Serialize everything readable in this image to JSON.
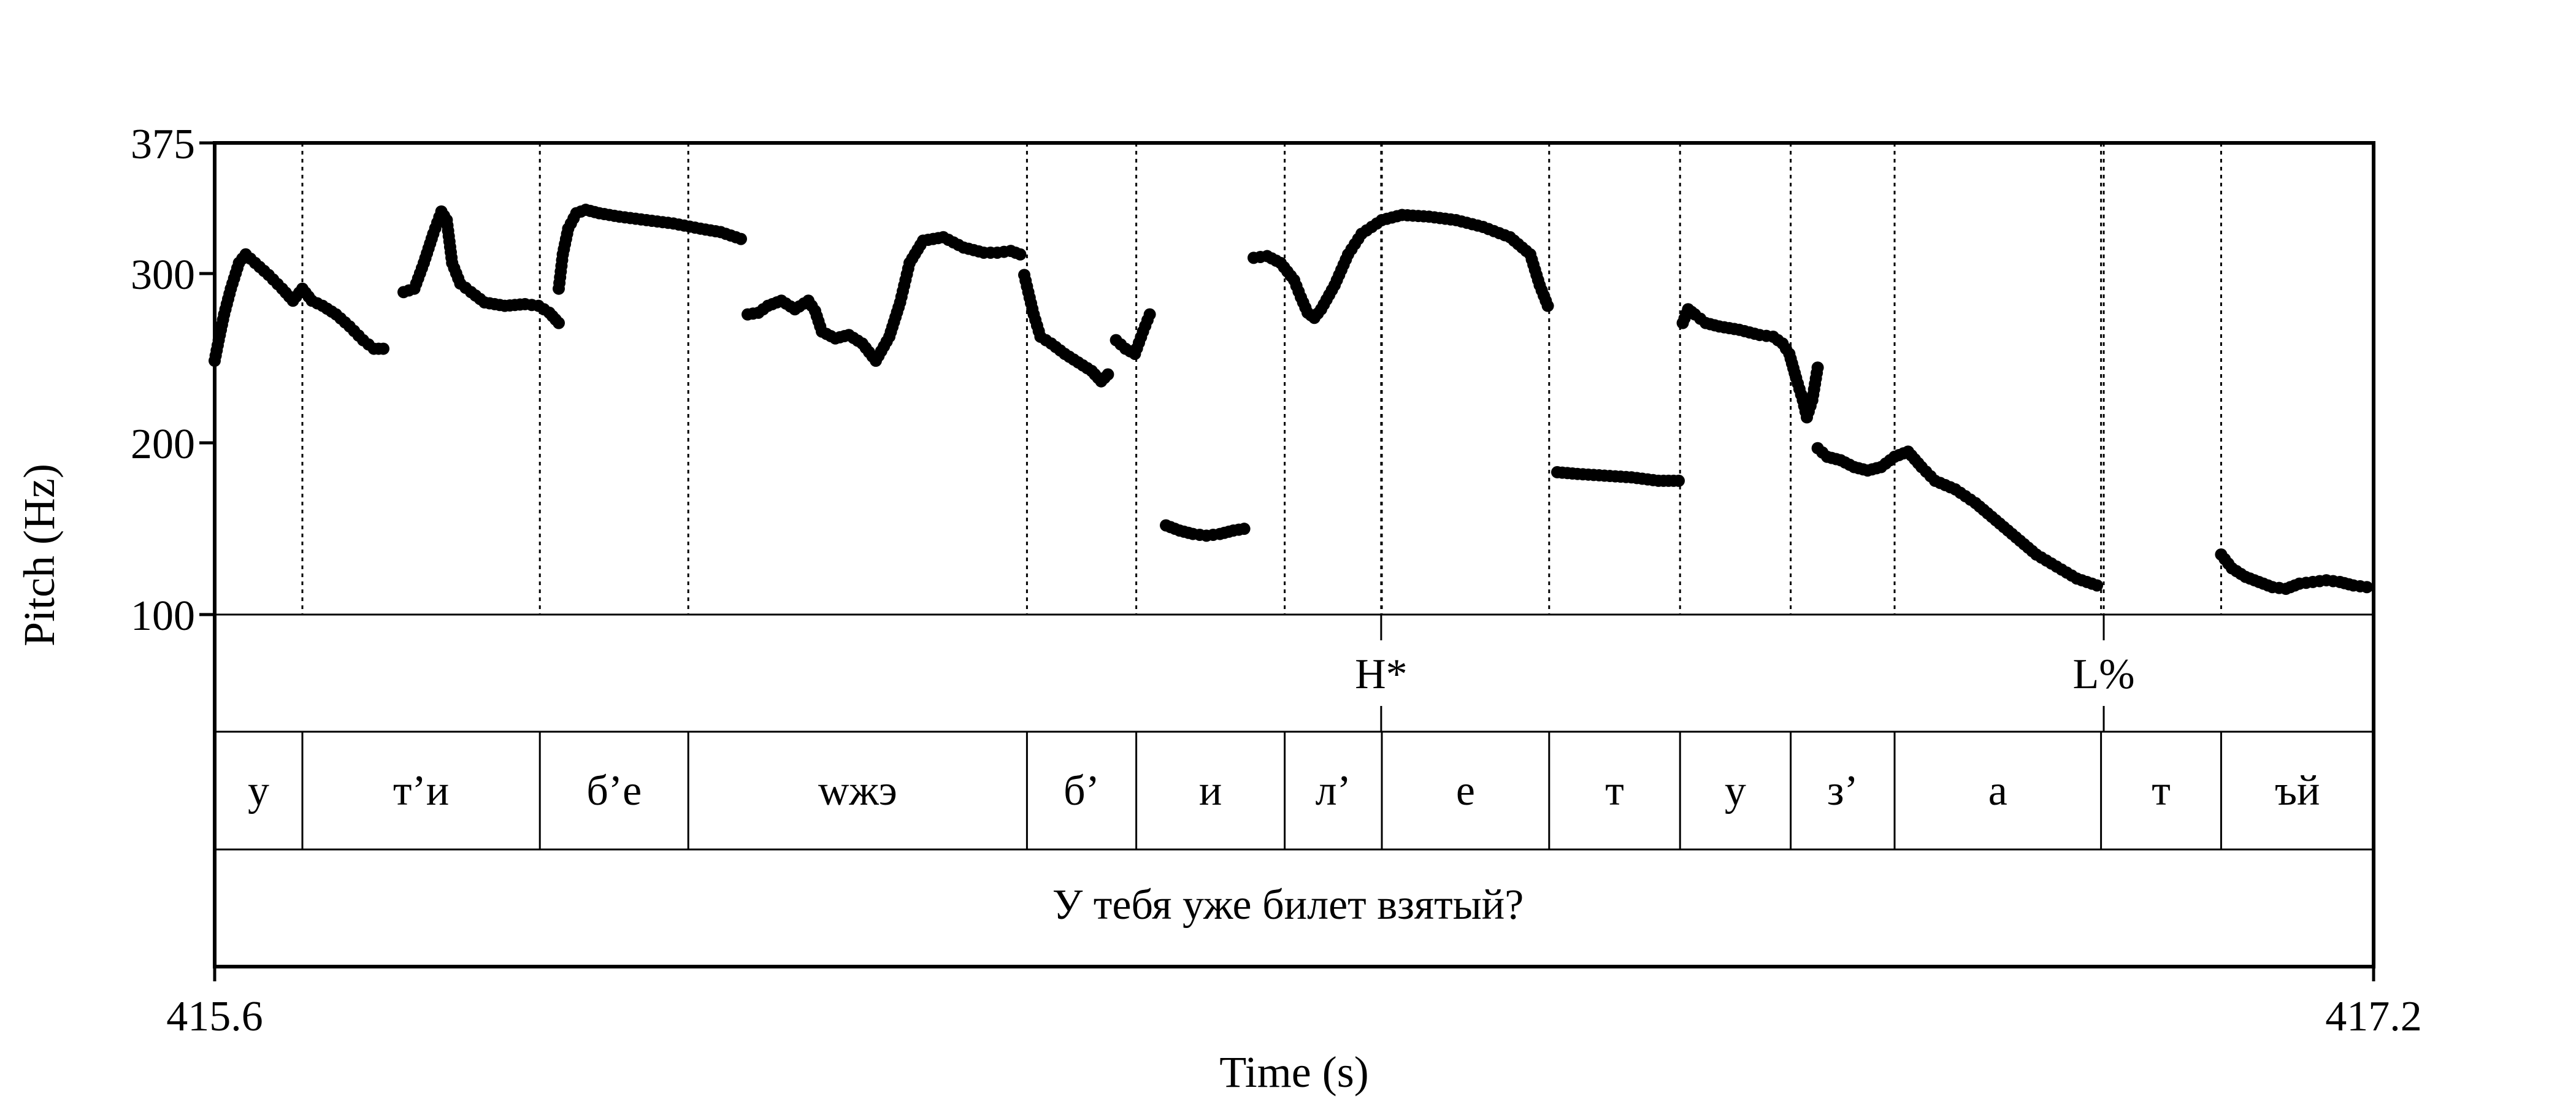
{
  "chart_data": {
    "type": "scatter",
    "ylabel": "Pitch (Hz)",
    "xlabel": "Time (s)",
    "y_ticks": [
      "375",
      "300",
      "200",
      "100"
    ],
    "x_start_label": "415.6",
    "x_end_label": "417.2",
    "xlim": [
      415.6,
      417.2
    ],
    "ylim": [
      100,
      375
    ],
    "tones_tier": [
      {
        "label": "H*",
        "time": 416.4645
      },
      {
        "label": "L%",
        "time": 417.0
      }
    ],
    "segments_tier": [
      {
        "label": "у",
        "start": 415.6,
        "end": 415.665
      },
      {
        "label": "т’и",
        "start": 415.665,
        "end": 415.841
      },
      {
        "label": "б’е",
        "start": 415.841,
        "end": 415.951
      },
      {
        "label": "wжэ",
        "start": 415.951,
        "end": 416.202
      },
      {
        "label": "б’",
        "start": 416.202,
        "end": 416.283
      },
      {
        "label": "и",
        "start": 416.283,
        "end": 416.393
      },
      {
        "label": "л’",
        "start": 416.393,
        "end": 416.465
      },
      {
        "label": "е",
        "start": 416.465,
        "end": 416.589
      },
      {
        "label": "т",
        "start": 416.589,
        "end": 416.686
      },
      {
        "label": "у",
        "start": 416.686,
        "end": 416.768
      },
      {
        "label": "з’",
        "start": 416.768,
        "end": 416.845
      },
      {
        "label": "а",
        "start": 416.845,
        "end": 416.998
      },
      {
        "label": "т",
        "start": 416.998,
        "end": 417.087
      },
      {
        "label": "ъй",
        "start": 417.087,
        "end": 417.2
      }
    ],
    "sentence_tier": {
      "label": "У тебя уже билет взятый?"
    },
    "pitch_contours": [
      {
        "x": [
          415.6,
          415.603,
          415.607,
          415.612,
          415.618,
          415.623,
          415.63,
          415.64,
          415.65,
          415.658,
          415.665,
          415.672,
          415.68,
          415.69,
          415.7,
          415.71,
          415.718,
          415.725
        ],
        "y": [
          248,
          260,
          275,
          290,
          305,
          310,
          305,
          298,
          290,
          283,
          290,
          283,
          280,
          275,
          268,
          260,
          255,
          255
        ]
      },
      {
        "x": [
          415.74,
          415.748,
          415.755,
          415.762,
          415.768,
          415.772,
          415.776,
          415.782,
          415.79,
          415.8,
          415.815,
          415.83,
          415.84,
          415.848,
          415.855
        ],
        "y": [
          288,
          290,
          305,
          322,
          335,
          330,
          305,
          293,
          288,
          282,
          280,
          281,
          280,
          276,
          270
        ]
      },
      {
        "x": [
          415.855,
          415.858,
          415.862,
          415.868,
          415.875,
          415.885,
          415.9,
          415.92,
          415.94,
          415.96,
          415.975,
          415.99
        ],
        "y": [
          290,
          310,
          325,
          334,
          336,
          334,
          332,
          330,
          328,
          325,
          323,
          319
        ]
      },
      {
        "x": [
          415.995,
          416.003,
          416.01,
          416.02,
          416.03,
          416.04,
          416.045,
          416.05,
          416.06,
          416.07,
          416.08,
          416.09,
          416.1,
          416.108,
          416.115,
          416.125,
          416.14,
          416.155,
          416.17,
          416.18,
          416.19,
          416.197
        ],
        "y": [
          275,
          276,
          280,
          283,
          278,
          283,
          277,
          265,
          261,
          263,
          258,
          248,
          262,
          282,
          305,
          318,
          320,
          314,
          311,
          311,
          312,
          310
        ]
      },
      {
        "x": [
          416.2,
          416.203,
          416.207,
          416.212,
          416.22,
          416.23,
          416.24,
          416.25,
          416.257,
          416.262
        ],
        "y": [
          298,
          288,
          275,
          262,
          258,
          252,
          247,
          242,
          236,
          240
        ]
      },
      {
        "x": [
          416.268,
          416.275,
          416.282,
          416.288,
          416.293
        ],
        "y": [
          260,
          255,
          252,
          265,
          275
        ]
      },
      {
        "x": [
          416.305,
          416.315,
          416.325,
          416.335,
          416.345,
          416.355,
          416.363
        ],
        "y": [
          152,
          149,
          147,
          146,
          147,
          149,
          150
        ]
      },
      {
        "x": [
          416.37,
          416.38,
          416.39,
          416.4,
          416.405,
          416.41,
          416.415,
          416.42,
          416.43,
          416.44,
          416.45,
          416.465,
          416.48,
          416.5,
          416.52,
          416.54,
          416.56,
          416.575,
          416.582,
          416.588
        ],
        "y": [
          308,
          309,
          305,
          295,
          285,
          276,
          273,
          278,
          292,
          310,
          322,
          330,
          333,
          332,
          330,
          326,
          320,
          310,
          292,
          280
        ]
      },
      {
        "x": [
          416.595,
          416.61,
          416.63,
          416.65,
          416.67,
          416.685
        ],
        "y": [
          183,
          182,
          181,
          180,
          178,
          178
        ]
      },
      {
        "x": [
          416.688,
          416.692,
          416.697,
          416.705,
          416.715,
          416.73,
          416.745,
          416.755,
          416.762,
          416.767,
          416.772,
          416.777,
          416.78,
          416.784,
          416.788
        ],
        "y": [
          270,
          278,
          275,
          270,
          268,
          266,
          263,
          262,
          258,
          252,
          238,
          225,
          215,
          225,
          244
        ]
      },
      {
        "x": [
          416.788,
          416.795,
          416.805,
          416.815,
          416.825,
          416.835,
          416.845,
          416.855,
          416.865,
          416.875,
          416.89,
          416.905,
          416.92,
          416.935,
          416.95,
          416.965,
          416.98,
          416.995
        ],
        "y": [
          197,
          192,
          190,
          186,
          184,
          186,
          192,
          195,
          186,
          178,
          173,
          165,
          155,
          145,
          135,
          128,
          121,
          117
        ]
      },
      {
        "x": [
          417.087,
          417.095,
          417.105,
          417.115,
          417.125,
          417.135,
          417.145,
          417.155,
          417.165,
          417.175,
          417.185,
          417.195
        ],
        "y": [
          135,
          127,
          122,
          119,
          116,
          115,
          118,
          119,
          120,
          119,
          117,
          116
        ]
      }
    ]
  }
}
